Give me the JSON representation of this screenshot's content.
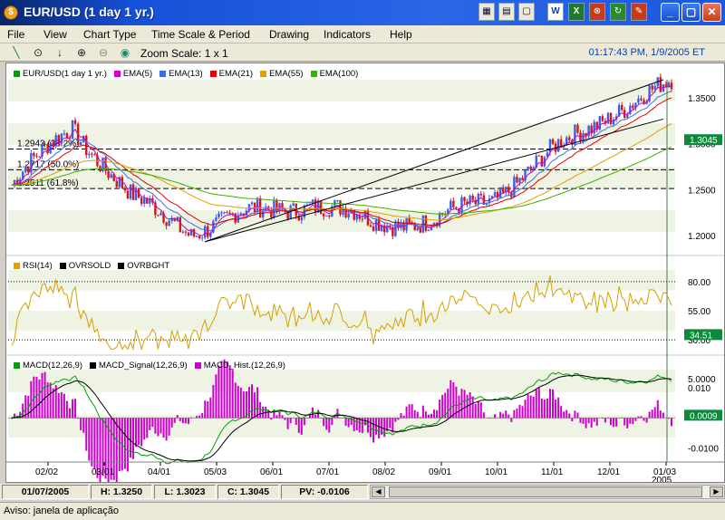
{
  "window": {
    "title": "EUR/USD (1 day  1 yr.)",
    "app_icon": "forex-logo-icon",
    "toolbar_icons": [
      "chart-icon",
      "page-icon",
      "folder-icon",
      "excel-icon",
      "word-icon",
      "excel-close-icon",
      "calc-icon",
      "refresh-icon",
      "settings-icon"
    ],
    "controls": {
      "minimize": "_",
      "maximize": "▢",
      "close": "✕"
    }
  },
  "menu": [
    "File",
    "View",
    "Chart Type",
    "Time Scale & Period",
    "Drawing",
    "Indicators",
    "Help"
  ],
  "toolbar": {
    "tools": [
      "line-draw-icon",
      "crosshair-icon",
      "down-arrow-icon",
      "zoom-in-icon",
      "zoom-out-icon",
      "globe-icon"
    ],
    "zoom_label": "Zoom Scale: 1 x 1",
    "clock": "01:17:43 PM, 1/9/2005 ET"
  },
  "price_panel": {
    "legend": [
      {
        "label": "EUR/USD(1 day  1 yr.)",
        "color": "#00a000"
      },
      {
        "label": "EMA(5)",
        "color": "#cc00cc"
      },
      {
        "label": "EMA(13)",
        "color": "#3c6ee0"
      },
      {
        "label": "EMA(21)",
        "color": "#e00000"
      },
      {
        "label": "EMA(55)",
        "color": "#e0a000"
      },
      {
        "label": "EMA(100)",
        "color": "#3cb000"
      }
    ],
    "fib_levels": [
      {
        "label": "1.2943 (38.2%)",
        "value": 1.2943
      },
      {
        "label": "1.2717 (50.0%)",
        "value": 1.2717
      },
      {
        "label": "1.2511 (61.8%)",
        "value": 1.2511
      }
    ],
    "y_ticks": [
      "1.3500",
      "1.3000",
      "1.2500",
      "1.2000"
    ],
    "current_price": "1.3045"
  },
  "rsi_panel": {
    "legend": [
      {
        "label": "RSI(14)",
        "color": "#e0a000"
      },
      {
        "label": "OVRSOLD",
        "color": "#000000"
      },
      {
        "label": "OVRBGHT",
        "color": "#000000"
      }
    ],
    "y_ticks": [
      "80.00",
      "55.00",
      "30.00"
    ],
    "current": "34.51"
  },
  "macd_panel": {
    "legend": [
      {
        "label": "MACD(12,26,9)",
        "color": "#00a000"
      },
      {
        "label": "MACD_Signal(12,26,9)",
        "color": "#000000"
      },
      {
        "label": "MACD_Hist.(12,26,9)",
        "color": "#cc00cc"
      }
    ],
    "y_ticks": [
      "0.010",
      "-0.0100"
    ],
    "top_label": "5.0000",
    "current": "0.0009"
  },
  "x_axis": [
    "02/02",
    "03/01",
    "04/01",
    "05/03",
    "06/01",
    "07/01",
    "08/02",
    "09/01",
    "10/01",
    "11/01",
    "12/01",
    "01/03"
  ],
  "x_axis_year": "2005",
  "status": {
    "date": "01/07/2005",
    "high": "H: 1.3250",
    "low": "L: 1.3023",
    "close": "C: 1.3045",
    "pv": "PV: -0.0106"
  },
  "notice": "Aviso: janela de aplicação",
  "chart_data": {
    "type": "line",
    "x": [
      "02/02",
      "03/01",
      "04/01",
      "05/03",
      "06/01",
      "07/01",
      "08/02",
      "09/01",
      "10/01",
      "11/01",
      "12/01",
      "01/03"
    ],
    "series": [
      {
        "name": "EUR/USD(1 day  1 yr.)",
        "values": [
          1.255,
          1.32,
          1.24,
          1.205,
          1.225,
          1.235,
          1.215,
          1.215,
          1.24,
          1.29,
          1.335,
          1.365
        ]
      },
      {
        "name": "EMA(100)",
        "values": [
          1.27,
          1.265,
          1.255,
          1.235,
          1.225,
          1.225,
          1.22,
          1.215,
          1.22,
          1.24,
          1.265,
          1.3
        ]
      }
    ],
    "ylabel": "",
    "ylim": [
      1.18,
      1.37
    ]
  }
}
